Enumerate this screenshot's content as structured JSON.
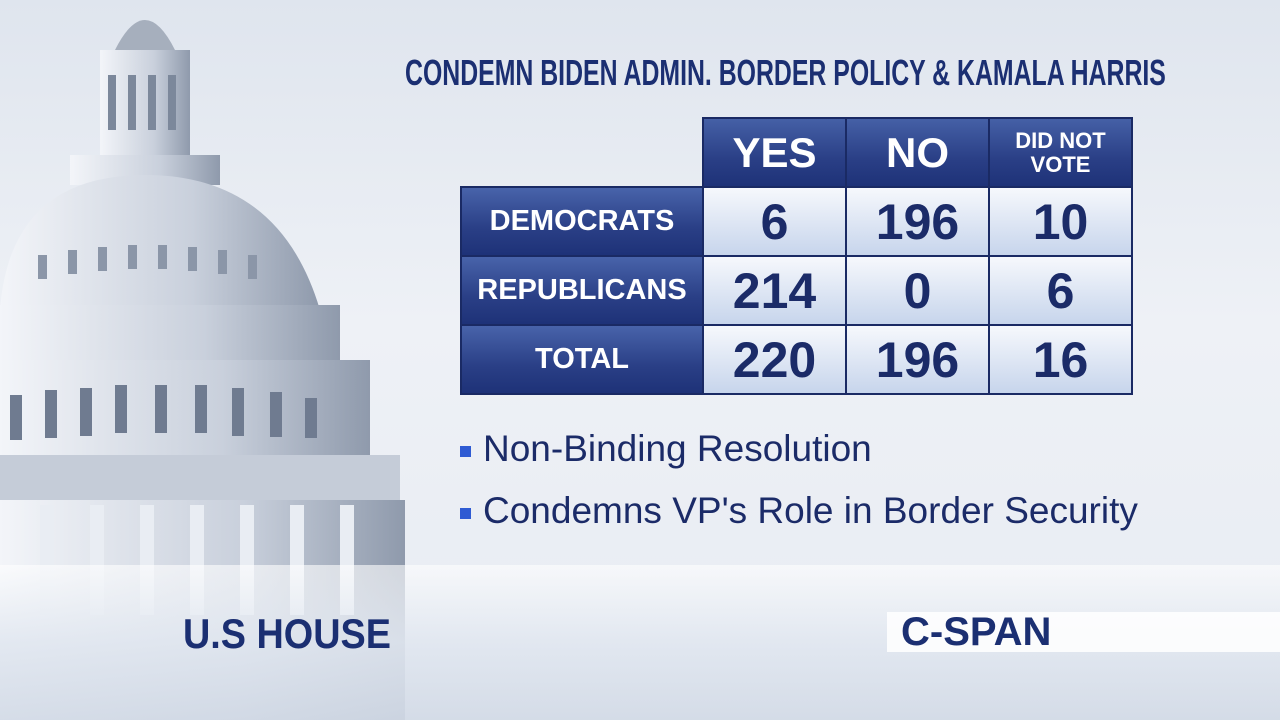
{
  "title": "CONDEMN BIDEN ADMIN. BORDER POLICY & KAMALA HARRIS",
  "table": {
    "columns": [
      "YES",
      "NO",
      "DID NOT VOTE"
    ],
    "rows": [
      [
        "DEMOCRATS",
        6,
        196,
        10
      ],
      [
        "REPUBLICANS",
        214,
        0,
        6
      ],
      [
        "TOTAL",
        220,
        196,
        16
      ]
    ]
  },
  "bullets": [
    "Non-Binding Resolution",
    "Condemns VP's Role in Border Security"
  ],
  "footer": {
    "location": "U.S HOUSE",
    "network": "C-SPAN"
  }
}
